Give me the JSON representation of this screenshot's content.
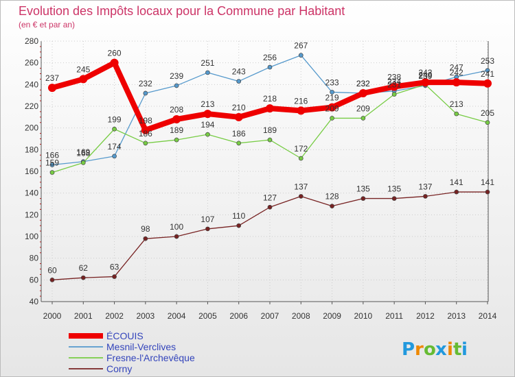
{
  "chart_data": {
    "type": "line",
    "title": "Evolution des Impôts locaux pour la Commune par Habitant",
    "subtitle": "(en € et par an)",
    "xlabel": "",
    "ylabel": "",
    "ylim": [
      40,
      280
    ],
    "yticks": [
      40,
      60,
      80,
      100,
      120,
      140,
      160,
      180,
      200,
      220,
      240,
      260,
      280
    ],
    "grid": true,
    "legend_position": "bottom-left",
    "x": [
      "2000",
      "2001",
      "2002",
      "2003",
      "2004",
      "2005",
      "2006",
      "2007",
      "2008",
      "2009",
      "2010",
      "2011",
      "2012",
      "2013",
      "2014"
    ],
    "series": [
      {
        "name": "ÉCOUIS",
        "color": "#ee0000",
        "values": [
          237,
          245,
          260,
          198,
          208,
          213,
          210,
          218,
          216,
          219,
          232,
          238,
          242,
          242,
          241
        ]
      },
      {
        "name": "Mesnil-Verclives",
        "color": "#5599cc",
        "values": [
          166,
          169,
          174,
          232,
          239,
          251,
          243,
          256,
          267,
          233,
          232,
          234,
          239,
          247,
          253
        ]
      },
      {
        "name": "Fresne-l'Archevêque",
        "color": "#77cc44",
        "values": [
          159,
          168,
          199,
          186,
          189,
          194,
          186,
          189,
          172,
          209,
          209,
          231,
          240,
          213,
          205
        ]
      },
      {
        "name": "Corny",
        "color": "#772222",
        "values": [
          60,
          62,
          63,
          98,
          100,
          107,
          110,
          127,
          137,
          128,
          135,
          135,
          137,
          141,
          141
        ]
      }
    ]
  },
  "logo": {
    "text": "Proxiti",
    "letters": [
      "P",
      "r",
      "o",
      "x",
      "i",
      "t",
      "i"
    ]
  }
}
